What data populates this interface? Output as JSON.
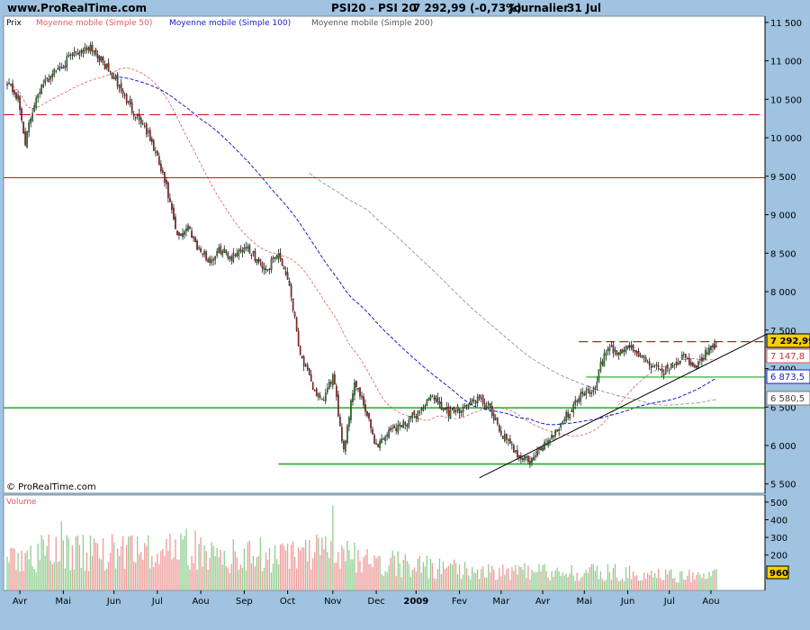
{
  "header": {
    "site": "www.ProRealTime.com",
    "instrument": "PSI20 - PSI 20",
    "price_change": "7 292,99 (-0,73%)",
    "period": "Journalier",
    "date": "31 Jul"
  },
  "legend": {
    "price": "Prix",
    "ma50": "Moyenne mobile (Simple 50)",
    "ma100": "Moyenne mobile (Simple 100)",
    "ma200": "Moyenne mobile (Simple 200)"
  },
  "watermark": "© ProRealTime.com",
  "volume_panel": {
    "label": "Volume"
  },
  "colors": {
    "background": "#9fc3e0",
    "panel": "#ffffff",
    "bull": "#2e8b2e",
    "bear": "#b22222",
    "ma50": "#e05a5a",
    "ma100": "#1a1acc",
    "ma200": "#888888",
    "support": "#22aa22",
    "resistance": "#d01818",
    "trend": "#000000",
    "vol_up": "#8fcf8f",
    "vol_down": "#ef9a9a"
  },
  "chart_data": [
    {
      "type": "candlestick",
      "title": "PSI20 - PSI 20",
      "y_axis_ticks": [
        5500,
        6000,
        6500,
        7000,
        7500,
        8000,
        8500,
        9000,
        9500,
        10000,
        10500,
        11000,
        11500
      ],
      "y_tick_labels": [
        "5 500",
        "6 000",
        "6 500",
        "7 000",
        "7 500",
        "8 000",
        "8 500",
        "9 000",
        "9 500",
        "10 000",
        "10 500",
        "11 000",
        "11 500"
      ],
      "ylim": [
        5380,
        11580
      ],
      "x_tick_labels": [
        "Avr",
        "Mai",
        "Jun",
        "Jul",
        "Aou",
        "Sep",
        "Oct",
        "Nov",
        "Dec",
        "2009",
        "Fev",
        "Mar",
        "Avr",
        "Mai",
        "Jun",
        "Jul",
        "Aou"
      ],
      "bold_x_tick": "2009",
      "anchors": [
        [
          0,
          10750
        ],
        [
          6,
          10500
        ],
        [
          10,
          9950
        ],
        [
          16,
          10550
        ],
        [
          22,
          10750
        ],
        [
          30,
          10950
        ],
        [
          38,
          11100
        ],
        [
          46,
          11200
        ],
        [
          52,
          11000
        ],
        [
          60,
          10750
        ],
        [
          68,
          10400
        ],
        [
          76,
          10150
        ],
        [
          82,
          9800
        ],
        [
          88,
          9350
        ],
        [
          94,
          8700
        ],
        [
          100,
          8850
        ],
        [
          106,
          8550
        ],
        [
          112,
          8400
        ],
        [
          118,
          8550
        ],
        [
          124,
          8450
        ],
        [
          132,
          8600
        ],
        [
          138,
          8400
        ],
        [
          144,
          8300
        ],
        [
          150,
          8500
        ],
        [
          156,
          8100
        ],
        [
          162,
          7200
        ],
        [
          168,
          6800
        ],
        [
          174,
          6550
        ],
        [
          180,
          6900
        ],
        [
          186,
          5950
        ],
        [
          192,
          6850
        ],
        [
          198,
          6450
        ],
        [
          204,
          6000
        ],
        [
          212,
          6200
        ],
        [
          220,
          6300
        ],
        [
          228,
          6450
        ],
        [
          236,
          6650
        ],
        [
          244,
          6400
        ],
        [
          252,
          6500
        ],
        [
          260,
          6600
        ],
        [
          266,
          6500
        ],
        [
          272,
          6200
        ],
        [
          278,
          6000
        ],
        [
          284,
          5850
        ],
        [
          290,
          5800
        ],
        [
          296,
          6000
        ],
        [
          302,
          6150
        ],
        [
          308,
          6350
        ],
        [
          314,
          6550
        ],
        [
          320,
          6750
        ],
        [
          324,
          6700
        ],
        [
          328,
          7050
        ],
        [
          332,
          7250
        ],
        [
          338,
          7200
        ],
        [
          344,
          7300
        ],
        [
          350,
          7150
        ],
        [
          356,
          7050
        ],
        [
          362,
          6950
        ],
        [
          368,
          7050
        ],
        [
          374,
          7150
        ],
        [
          380,
          7000
        ],
        [
          386,
          7200
        ],
        [
          392,
          7290
        ]
      ],
      "last_index": 392,
      "ma_start": {
        "ma50": 3,
        "ma100": 62,
        "ma200": 167
      },
      "levels": {
        "resistance_dashed": 10300,
        "resistance_solid": 9480,
        "support_main": 6490,
        "support_low": 5760,
        "support_short": 6890,
        "resistance_recent": 7350,
        "trendline": [
          [
            5580,
            261
          ],
          [
            7450,
            420
          ]
        ]
      },
      "price_tags": [
        {
          "value": 7292.99,
          "label": "7 292,99",
          "style": "price"
        },
        {
          "value": 7147.8,
          "label": "7 147,8",
          "style": "ma50"
        },
        {
          "value": 6873.5,
          "label": "6 873,5",
          "style": "ma100"
        },
        {
          "value": 6580.5,
          "label": "6 580,5",
          "style": "ma200"
        }
      ],
      "volume": {
        "y_axis_ticks": [
          200,
          300,
          400,
          500
        ],
        "ylim": [
          0,
          540
        ],
        "last_label": "960",
        "profile": [
          [
            0,
            200
          ],
          [
            30,
            240
          ],
          [
            60,
            230
          ],
          [
            90,
            250
          ],
          [
            120,
            210
          ],
          [
            150,
            200
          ],
          [
            170,
            230
          ],
          [
            190,
            200
          ],
          [
            230,
            150
          ],
          [
            260,
            120
          ],
          [
            300,
            110
          ],
          [
            330,
            110
          ],
          [
            360,
            95
          ],
          [
            392,
            90
          ]
        ]
      }
    }
  ]
}
